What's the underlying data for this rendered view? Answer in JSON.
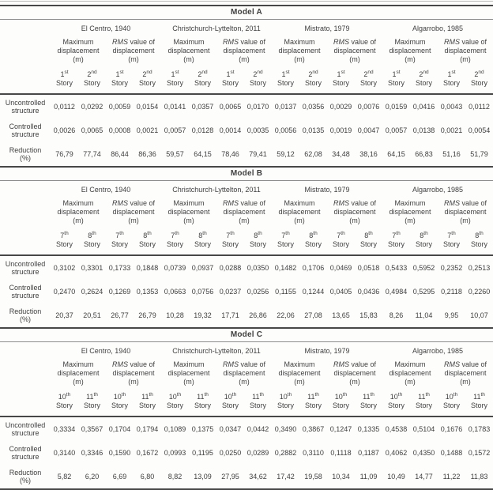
{
  "style": {
    "page_background": "#fdfdfc",
    "text_color": "#3f3f3f",
    "rule_dark": "#474747",
    "rule_medium": "#8c8c8c",
    "rule_light": "#b9b9b9"
  },
  "shared": {
    "earthquakes": [
      "El Centro, 1940",
      "Christchurch-Lyttelton, 2011",
      "Mistrato, 1979",
      "Algarrobo, 1985"
    ],
    "measure_max_label": "Maximum displacement (m)",
    "measure_rms_em": "RMS",
    "measure_rms_rest": " value of displacement (m)",
    "story_word": "Story",
    "row_labels": [
      {
        "line1": "Uncontrolled",
        "line2": "structure"
      },
      {
        "line1": "Controlled",
        "line2": "structure"
      },
      {
        "line1": "Reduction",
        "line2": "(%)"
      }
    ]
  },
  "tables": [
    {
      "title": "Model A",
      "stories": [
        {
          "num": "1",
          "suffix": "st"
        },
        {
          "num": "2",
          "suffix": "nd"
        }
      ],
      "rows": [
        [
          "0,0112",
          "0,0292",
          "0,0059",
          "0,0154",
          "0,0141",
          "0,0357",
          "0,0065",
          "0,0170",
          "0,0137",
          "0,0356",
          "0,0029",
          "0,0076",
          "0,0159",
          "0,0416",
          "0,0043",
          "0,0112"
        ],
        [
          "0,0026",
          "0,0065",
          "0,0008",
          "0,0021",
          "0,0057",
          "0,0128",
          "0,0014",
          "0,0035",
          "0,0056",
          "0,0135",
          "0,0019",
          "0,0047",
          "0,0057",
          "0,0138",
          "0,0021",
          "0,0054"
        ],
        [
          "76,79",
          "77,74",
          "86,44",
          "86,36",
          "59,57",
          "64,15",
          "78,46",
          "79,41",
          "59,12",
          "62,08",
          "34,48",
          "38,16",
          "64,15",
          "66,83",
          "51,16",
          "51,79"
        ]
      ]
    },
    {
      "title": "Model B",
      "stories": [
        {
          "num": "7",
          "suffix": "th"
        },
        {
          "num": "8",
          "suffix": "th"
        }
      ],
      "rows": [
        [
          "0,3102",
          "0,3301",
          "0,1733",
          "0,1848",
          "0,0739",
          "0,0937",
          "0,0288",
          "0,0350",
          "0,1482",
          "0,1706",
          "0,0469",
          "0,0518",
          "0,5433",
          "0,5952",
          "0,2352",
          "0,2513"
        ],
        [
          "0,2470",
          "0,2624",
          "0,1269",
          "0,1353",
          "0,0663",
          "0,0756",
          "0,0237",
          "0,0256",
          "0,1155",
          "0,1244",
          "0,0405",
          "0,0436",
          "0,4984",
          "0,5295",
          "0,2118",
          "0,2260"
        ],
        [
          "20,37",
          "20,51",
          "26,77",
          "26,79",
          "10,28",
          "19,32",
          "17,71",
          "26,86",
          "22,06",
          "27,08",
          "13,65",
          "15,83",
          "8,26",
          "11,04",
          "9,95",
          "10,07"
        ]
      ]
    },
    {
      "title": "Model C",
      "stories": [
        {
          "num": "10",
          "suffix": "th"
        },
        {
          "num": "11",
          "suffix": "th"
        }
      ],
      "rows": [
        [
          "0,3334",
          "0,3567",
          "0,1704",
          "0,1794",
          "0,1089",
          "0,1375",
          "0,0347",
          "0,0442",
          "0,3490",
          "0,3867",
          "0,1247",
          "0,1335",
          "0,4538",
          "0,5104",
          "0,1676",
          "0,1783"
        ],
        [
          "0,3140",
          "0,3346",
          "0,1590",
          "0,1672",
          "0,0993",
          "0,1195",
          "0,0250",
          "0,0289",
          "0,2882",
          "0,3110",
          "0,1118",
          "0,1187",
          "0,4062",
          "0,4350",
          "0,1488",
          "0,1572"
        ],
        [
          "5,82",
          "6,20",
          "6,69",
          "6,80",
          "8,82",
          "13,09",
          "27,95",
          "34,62",
          "17,42",
          "19,58",
          "10,34",
          "11,09",
          "10,49",
          "14,77",
          "11,22",
          "11,83"
        ]
      ]
    }
  ]
}
